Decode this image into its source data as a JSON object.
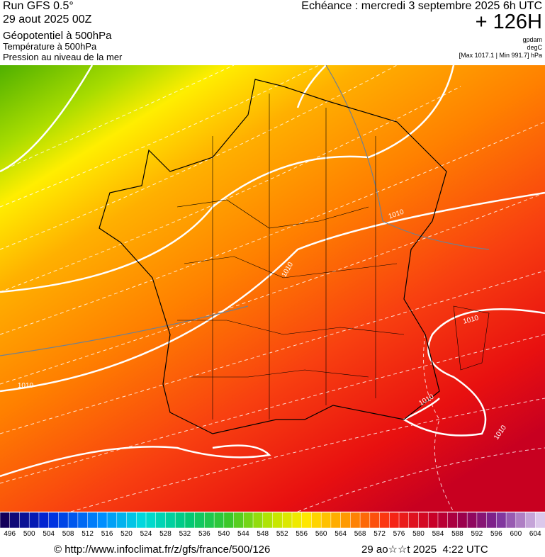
{
  "header": {
    "run": "Run GFS 0.5°",
    "date": "29 aout 2025 00Z",
    "field1": "Géopotentiel à 500hPa",
    "field2": "Température à 500hPa",
    "field3": "Pression au niveau de la mer",
    "valid": "Echéance : mercredi 3 septembre 2025 6h UTC",
    "lead": "+ 126H",
    "unit1": "gpdam",
    "unit2": "degC",
    "range": "[Max 1017.1 | Min 991.7] hPa"
  },
  "map": {
    "contour_labels": [
      "1010",
      "1010",
      "1010",
      "1010",
      "1010",
      "1010"
    ]
  },
  "colorbar": {
    "labels": [
      496,
      500,
      504,
      508,
      512,
      516,
      520,
      524,
      528,
      532,
      536,
      540,
      544,
      548,
      552,
      556,
      560,
      564,
      568,
      572,
      576,
      580,
      584,
      588,
      592,
      596,
      600,
      604
    ]
  },
  "footer": {
    "url": "© http://www.infoclimat.fr/z/gfs/france/500/126",
    "stamp": "29 ao☆☆t 2025  4:22 UTC"
  }
}
